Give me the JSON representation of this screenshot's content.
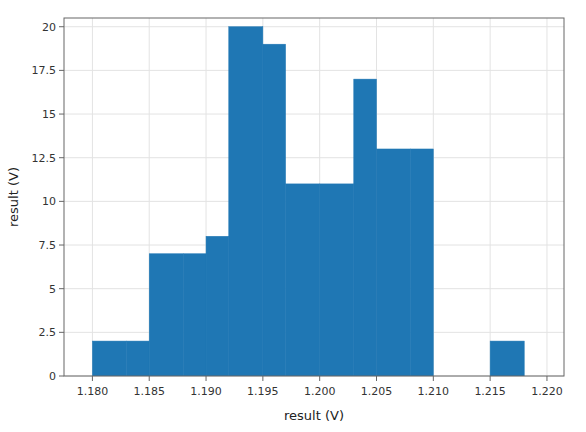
{
  "chart_data": {
    "type": "histogram",
    "xlabel": "result (V)",
    "ylabel": "result (V)",
    "color": "#1f77b4",
    "bins": [
      1.18,
      1.183,
      1.185,
      1.188,
      1.19,
      1.192,
      1.195,
      1.197,
      1.2,
      1.203,
      1.205,
      1.208,
      1.21,
      1.215,
      1.218,
      1.22
    ],
    "values": [
      2,
      2,
      7,
      7,
      8,
      20,
      19,
      11,
      11,
      17,
      13,
      13,
      0,
      2,
      0
    ],
    "xlim": [
      1.1775,
      1.2215
    ],
    "ylim": [
      0,
      20.5
    ],
    "xticks": [
      {
        "value": 1.18,
        "label": "1.180"
      },
      1.185,
      {
        "value": 1.19,
        "label": "1.190"
      },
      1.195,
      {
        "value": 1.2,
        "label": "1.200"
      },
      1.205,
      {
        "value": 1.21,
        "label": "1.210"
      },
      1.215,
      {
        "value": 1.22,
        "label": "1.220"
      }
    ],
    "yticks": [
      0,
      2.5,
      5,
      7.5,
      10,
      12.5,
      15,
      17.5,
      20
    ],
    "grid": true
  }
}
